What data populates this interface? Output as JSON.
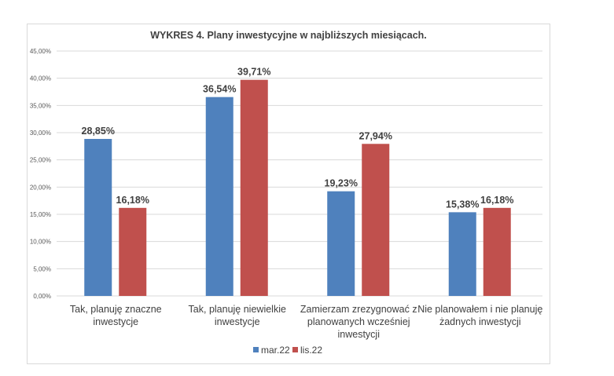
{
  "chart_data": {
    "type": "bar",
    "title": "WYKRES 4. Plany inwestycyjne w najbliższych miesiącach.",
    "xlabel": "",
    "ylabel": "",
    "ylim": [
      0,
      45
    ],
    "yticks": [
      0,
      5,
      10,
      15,
      20,
      25,
      30,
      35,
      40,
      45
    ],
    "ytick_labels": [
      "0,00%",
      "5,00%",
      "10,00%",
      "15,00%",
      "20,00%",
      "25,00%",
      "30,00%",
      "35,00%",
      "40,00%",
      "45,00%"
    ],
    "grid": true,
    "legend_position": "bottom",
    "categories": [
      [
        "Tak, planuję znaczne",
        "inwestycje"
      ],
      [
        "Tak, planuję niewielkie",
        "inwestycje"
      ],
      [
        "Zamierzam zrezygnować z",
        "planowanych wcześniej",
        "inwestycji"
      ],
      [
        "Nie planowałem i nie planuję",
        "żadnych inwestycji"
      ]
    ],
    "series": [
      {
        "name": "mar.22",
        "color": "#4F81BD",
        "values": [
          28.85,
          36.54,
          19.23,
          15.38
        ],
        "labels": [
          "28,85%",
          "36,54%",
          "19,23%",
          "15,38%"
        ]
      },
      {
        "name": "lis.22",
        "color": "#C0504D",
        "values": [
          16.18,
          39.71,
          27.94,
          16.18
        ],
        "labels": [
          "16,18%",
          "39,71%",
          "27,94%",
          "16,18%"
        ]
      }
    ]
  }
}
